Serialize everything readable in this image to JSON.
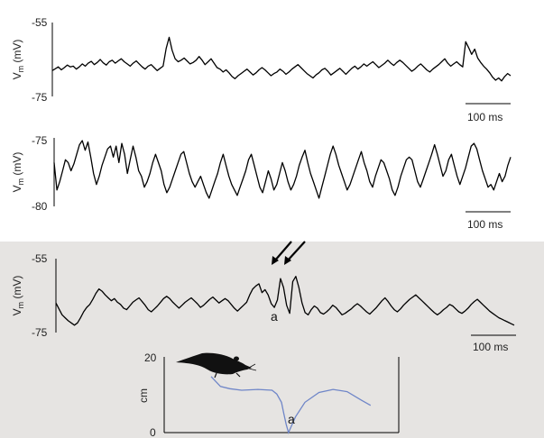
{
  "chart_data": [
    {
      "type": "line",
      "ylabel": "Vm (mV)",
      "ylabel_main": "V",
      "ylabel_sub": "m",
      "ylabel_unit": " (mV)",
      "ytick_top": "-55",
      "ytick_bottom": "-75",
      "ylim": [
        -75,
        -55
      ],
      "scale_bar": "100 ms",
      "background": "#ffffff",
      "series": [
        {
          "values": [
            -68,
            -67.5,
            -67,
            -67.8,
            -67.2,
            -66.5,
            -67,
            -66.8,
            -67.6,
            -67,
            -66.2,
            -66.8,
            -66,
            -65.5,
            -66.4,
            -65.8,
            -65,
            -65.9,
            -66.5,
            -65.6,
            -65.2,
            -66,
            -65.4,
            -64.8,
            -65.6,
            -66.2,
            -66.8,
            -66,
            -65.4,
            -66.2,
            -67,
            -67.6,
            -66.8,
            -66.4,
            -67.2,
            -68,
            -67.4,
            -66.8,
            -62,
            -59,
            -62.5,
            -64.8,
            -65.6,
            -65.2,
            -64.6,
            -65.4,
            -66.2,
            -65.8,
            -65.2,
            -64.2,
            -65.2,
            -66.4,
            -65.6,
            -64.8,
            -66,
            -67.2,
            -67.6,
            -68.4,
            -67.8,
            -68.6,
            -69.6,
            -70.2,
            -69.4,
            -68.8,
            -68.2,
            -67.6,
            -68.4,
            -69.2,
            -68.6,
            -67.8,
            -67.2,
            -67.8,
            -68.6,
            -69.4,
            -68.8,
            -68.4,
            -67.6,
            -68.2,
            -69,
            -68.4,
            -67.6,
            -67,
            -66.4,
            -67.2,
            -68,
            -68.8,
            -69.4,
            -70,
            -69.2,
            -68.6,
            -67.8,
            -67.4,
            -68.2,
            -69.2,
            -68.6,
            -68,
            -67.4,
            -68.2,
            -69,
            -68.2,
            -67.4,
            -66.8,
            -67.6,
            -67,
            -66.2,
            -66.8,
            -66.2,
            -65.6,
            -66.4,
            -67.2,
            -66.6,
            -66,
            -65.2,
            -66,
            -66.6,
            -65.8,
            -65.2,
            -65.8,
            -66.6,
            -67.4,
            -68.2,
            -67.6,
            -66.8,
            -66.2,
            -67,
            -67.8,
            -68.4,
            -67.6,
            -67,
            -66.4,
            -65.6,
            -64.8,
            -66,
            -66.8,
            -66.2,
            -65.6,
            -66.4,
            -67,
            -60.2,
            -61.8,
            -63.6,
            -62.2,
            -64.6,
            -65.8,
            -66.8,
            -67.6,
            -68.6,
            -69.8,
            -70.6,
            -70,
            -70.8,
            -69.6,
            -68.8,
            -69.4
          ]
        }
      ]
    },
    {
      "type": "line",
      "ylabel": "Vm (mV)",
      "ylabel_main": "V",
      "ylabel_sub": "m",
      "ylabel_unit": " (mV)",
      "ytick_top": "-75",
      "ytick_bottom": "-80",
      "ylim": [
        -80,
        -75
      ],
      "scale_bar": "100 ms",
      "background": "#ffffff",
      "series": [
        {
          "values": [
            -76.8,
            -78.8,
            -78.2,
            -77.4,
            -76.6,
            -76.8,
            -77.4,
            -76.9,
            -76.2,
            -75.5,
            -75.2,
            -75.9,
            -75.3,
            -76.4,
            -77.6,
            -78.4,
            -77.8,
            -77,
            -76.4,
            -75.8,
            -75.6,
            -76.4,
            -75.6,
            -76.8,
            -75.4,
            -76.2,
            -77.6,
            -76.6,
            -75.6,
            -76.4,
            -77.4,
            -77.8,
            -78.6,
            -78.2,
            -77.6,
            -76.8,
            -76.2,
            -76.8,
            -77.4,
            -78.4,
            -79,
            -78.6,
            -78,
            -77.4,
            -76.8,
            -76.2,
            -76,
            -76.8,
            -77.6,
            -78.2,
            -78.6,
            -78.2,
            -77.8,
            -78.4,
            -79,
            -79.4,
            -78.8,
            -78.2,
            -77.6,
            -76.8,
            -76.2,
            -77,
            -77.8,
            -78.4,
            -78.8,
            -79.2,
            -78.6,
            -78,
            -77.4,
            -76.6,
            -76.2,
            -77,
            -77.8,
            -78.6,
            -79,
            -78.2,
            -77.4,
            -78,
            -78.8,
            -78.4,
            -77.6,
            -76.8,
            -77.4,
            -78.2,
            -78.8,
            -78.4,
            -77.8,
            -77,
            -76.4,
            -75.9,
            -76.8,
            -77.6,
            -78.2,
            -78.8,
            -79.4,
            -78.6,
            -77.8,
            -77,
            -76.2,
            -75.6,
            -76.2,
            -77,
            -77.6,
            -78.2,
            -78.8,
            -78.4,
            -77.8,
            -77.2,
            -76.6,
            -76,
            -76.8,
            -77.4,
            -78.2,
            -78.6,
            -77.8,
            -77.2,
            -76.6,
            -76.8,
            -77.4,
            -78,
            -78.8,
            -79.2,
            -78.6,
            -77.8,
            -77.2,
            -76.6,
            -76.4,
            -76.6,
            -77.4,
            -78.2,
            -78.6,
            -78,
            -77.4,
            -76.8,
            -76.2,
            -75.5,
            -76.2,
            -77,
            -77.8,
            -77.4,
            -76.6,
            -76.2,
            -77,
            -77.8,
            -78.4,
            -77.8,
            -77.2,
            -76.4,
            -75.6,
            -75.4,
            -75.8,
            -76.6,
            -77.4,
            -78,
            -78.6,
            -78.4,
            -78.8,
            -78.2,
            -77.6,
            -78.2,
            -77.8,
            -77,
            -76.4
          ]
        }
      ]
    },
    {
      "type": "line",
      "ylabel": "Vm (mV)",
      "ylabel_main": "V",
      "ylabel_sub": "m",
      "ylabel_unit": " (mV)",
      "ytick_top": "-55",
      "ytick_bottom": "-75",
      "ylim": [
        -75,
        -55
      ],
      "scale_bar": "100 ms",
      "background": "#e6e4e2",
      "annotation": "a",
      "series": [
        {
          "values": [
            -67,
            -68.6,
            -70.2,
            -71,
            -71.8,
            -72.4,
            -73,
            -72.4,
            -71,
            -69.4,
            -68.2,
            -67.4,
            -66,
            -64.4,
            -63.2,
            -63.8,
            -64.8,
            -65.6,
            -66.4,
            -65.8,
            -66.8,
            -67.4,
            -68.4,
            -68.8,
            -67.8,
            -66.8,
            -66.2,
            -65.6,
            -66.6,
            -67.6,
            -68.8,
            -69.4,
            -68.6,
            -67.8,
            -66.8,
            -65.8,
            -65.2,
            -65.8,
            -66.8,
            -67.6,
            -68.4,
            -67.6,
            -66.8,
            -66.2,
            -65.6,
            -66.4,
            -67.2,
            -68.2,
            -67.6,
            -66.8,
            -66,
            -65.4,
            -66.2,
            -67,
            -66.4,
            -65.8,
            -66.4,
            -67.4,
            -68.4,
            -69.2,
            -68.4,
            -67.6,
            -66.8,
            -64.8,
            -63.2,
            -62.4,
            -61.8,
            -64.2,
            -63.4,
            -64.8,
            -67.2,
            -68.2,
            -66.2,
            -60.4,
            -62.8,
            -67.6,
            -69.8,
            -61.2,
            -59.8,
            -62.8,
            -67,
            -69.6,
            -70.2,
            -68.8,
            -67.8,
            -68.4,
            -69.6,
            -70,
            -69.4,
            -68.6,
            -67.6,
            -68.2,
            -69.2,
            -70.2,
            -69.8,
            -69.2,
            -68.6,
            -67.8,
            -67.2,
            -67.8,
            -68.6,
            -69.4,
            -70,
            -69.2,
            -68.4,
            -67.4,
            -66.4,
            -65.6,
            -66.6,
            -67.8,
            -68.8,
            -69.4,
            -68.6,
            -67.6,
            -66.8,
            -66,
            -65.4,
            -64.8,
            -65.6,
            -66.4,
            -67.2,
            -68,
            -68.8,
            -69.6,
            -70.2,
            -69.6,
            -68.8,
            -68.2,
            -67.4,
            -67.8,
            -68.6,
            -69.4,
            -69.8,
            -69.2,
            -68.4,
            -67.4,
            -66.6,
            -66,
            -66.8,
            -67.6,
            -68.4,
            -69.2,
            -69.8,
            -70.4,
            -71,
            -71.4,
            -71.8,
            -72.2,
            -72.6,
            -73
          ]
        }
      ]
    },
    {
      "type": "line",
      "ylabel": "cm",
      "ytick_top": "20",
      "ytick_bottom": "0",
      "ylim": [
        0,
        20
      ],
      "annotation": "a",
      "series": [
        {
          "x": [
            0.2,
            0.24,
            0.28,
            0.33,
            0.4,
            0.46,
            0.48,
            0.5,
            0.51,
            0.52,
            0.53,
            0.56,
            0.6,
            0.66,
            0.72,
            0.78,
            0.84,
            0.88
          ],
          "y": [
            14.8,
            12.2,
            11.6,
            11.2,
            11.4,
            11.2,
            10.2,
            8.0,
            5.0,
            2.2,
            0.0,
            4.2,
            8.0,
            10.6,
            11.4,
            10.8,
            8.6,
            7.2
          ]
        }
      ]
    }
  ]
}
